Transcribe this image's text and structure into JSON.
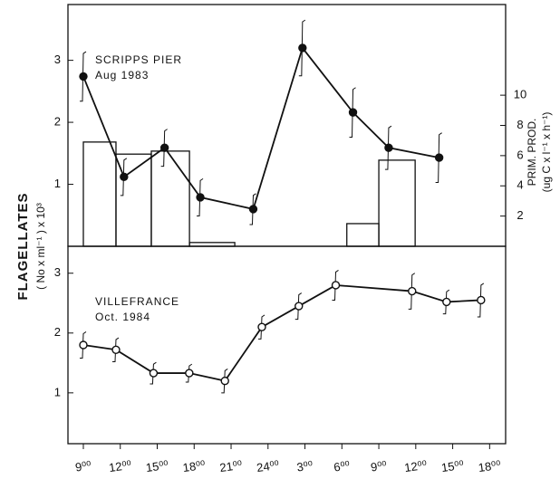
{
  "chart_data": [
    {
      "type": "combo",
      "annotation": [
        "SCRIPPS PIER",
        "Aug 1983"
      ],
      "ylabel": [
        "FLAGELLATES",
        "( No x ml⁻¹ ) x 10³"
      ],
      "y2label": [
        "PRIM. PROD.",
        "(ug C x l⁻¹ x h⁻¹)"
      ],
      "xlim": [
        7.75,
        43.3
      ],
      "ylim": [
        0,
        3.9
      ],
      "yticks": [
        1,
        2,
        3
      ],
      "y2lim": [
        0,
        16
      ],
      "y2ticks": [
        2,
        4,
        6,
        8,
        10
      ],
      "series": [
        {
          "kind": "line",
          "marker": "filled",
          "color": "#111",
          "x": [
            9,
            12.3,
            15.6,
            18.5,
            22.8,
            26.8,
            30.9,
            33.8,
            37.9
          ],
          "values": [
            2.74,
            1.12,
            1.59,
            0.79,
            0.6,
            3.2,
            2.16,
            1.59,
            1.43
          ],
          "errors": [
            0.4,
            0.3,
            0.3,
            0.3,
            0.25,
            0.45,
            0.4,
            0.35,
            0.4
          ]
        },
        {
          "kind": "bar",
          "axis": "y2",
          "color": "#111",
          "x_start": [
            9,
            11.65,
            14.52,
            17.62,
            30.4,
            33.0
          ],
          "x_end": [
            11.65,
            14.52,
            17.62,
            21.3,
            33.0,
            35.95
          ],
          "values": [
            6.9,
            6.1,
            6.3,
            0.25,
            1.5,
            5.7
          ]
        }
      ]
    },
    {
      "type": "line",
      "annotation": [
        "VILLEFRANCE",
        "Oct. 1984"
      ],
      "xlim": [
        7.75,
        43.3
      ],
      "ylim": [
        0.15,
        3.45
      ],
      "yticks": [
        1,
        2,
        3
      ],
      "xticks": [
        {
          "value": 9,
          "label": "9⁰⁰"
        },
        {
          "value": 12,
          "label": "12⁰⁰"
        },
        {
          "value": 15,
          "label": "15⁰⁰"
        },
        {
          "value": 18,
          "label": "18⁰⁰"
        },
        {
          "value": 21,
          "label": "21⁰⁰"
        },
        {
          "value": 24,
          "label": "24⁰⁰"
        },
        {
          "value": 27,
          "label": "3⁰⁰"
        },
        {
          "value": 30,
          "label": "6⁰⁰"
        },
        {
          "value": 33,
          "label": "9⁰⁰"
        },
        {
          "value": 36,
          "label": "12⁰⁰"
        },
        {
          "value": 39,
          "label": "15⁰⁰"
        },
        {
          "value": 42,
          "label": "18⁰⁰"
        }
      ],
      "series": [
        {
          "kind": "line",
          "marker": "open",
          "color": "#111",
          "x": [
            9,
            11.65,
            14.7,
            17.6,
            20.5,
            23.5,
            26.5,
            29.5,
            35.7,
            38.5,
            41.3
          ],
          "values": [
            1.8,
            1.72,
            1.33,
            1.33,
            1.2,
            2.1,
            2.45,
            2.8,
            2.7,
            2.52,
            2.55
          ],
          "errors": [
            0.22,
            0.2,
            0.18,
            0.15,
            0.2,
            0.2,
            0.22,
            0.25,
            0.3,
            0.2,
            0.28
          ]
        }
      ]
    }
  ]
}
